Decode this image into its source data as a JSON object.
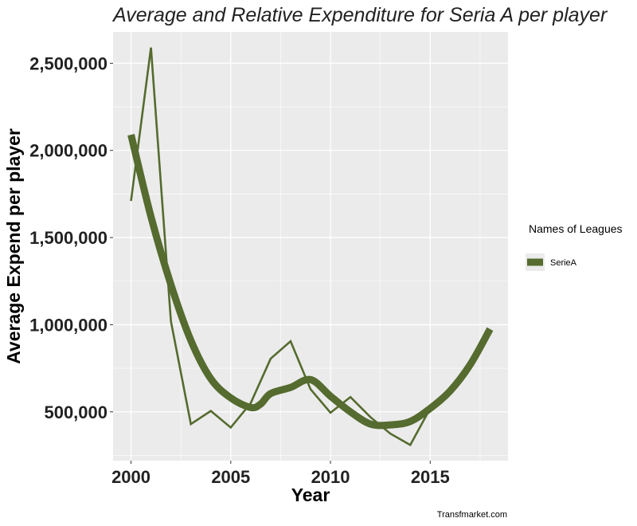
{
  "chart_data": {
    "type": "line",
    "title": "Average and Relative  Expenditure for Seria A  per player",
    "xlabel": "Year",
    "ylabel": "Average Expend  per player",
    "caption": "Transfmarket.com",
    "xlim": [
      1999.1,
      2018.9
    ],
    "ylim": [
      220000,
      2680000
    ],
    "xticks": [
      2000,
      2005,
      2010,
      2015
    ],
    "yticks": [
      500000,
      1000000,
      1500000,
      2000000,
      2500000
    ],
    "xtick_labels": [
      "2000",
      "2005",
      "2010",
      "2015"
    ],
    "ytick_labels": [
      "500,000",
      "1,000,000",
      "1,500,000",
      "2,000,000",
      "2,500,000"
    ],
    "grid": true,
    "panel_background": "#ebebeb",
    "legend": {
      "title": "Names of Leagues",
      "position": "right",
      "entries": [
        "SerieA"
      ]
    },
    "series": [
      {
        "name": "SerieA",
        "kind": "raw",
        "color": "#556b2f",
        "x": [
          2000,
          2001,
          2002,
          2003,
          2004,
          2005,
          2006,
          2007,
          2008,
          2009,
          2010,
          2011,
          2012,
          2013,
          2014,
          2015
        ],
        "y": [
          1710000,
          2590000,
          1020000,
          430000,
          505000,
          410000,
          550000,
          805000,
          905000,
          630000,
          495000,
          585000,
          470000,
          375000,
          310000,
          520000
        ]
      },
      {
        "name": "SerieA",
        "kind": "smoothed",
        "color": "#556b2f",
        "x": [
          2000,
          2001,
          2002,
          2003,
          2004,
          2005,
          2006,
          2006.5,
          2007,
          2008,
          2009,
          2010,
          2011,
          2012,
          2013,
          2014,
          2015,
          2016,
          2017,
          2018
        ],
        "y": [
          2090000,
          1620000,
          1230000,
          910000,
          690000,
          580000,
          525000,
          545000,
          605000,
          640000,
          685000,
          590000,
          500000,
          430000,
          425000,
          445000,
          520000,
          620000,
          770000,
          975000
        ]
      }
    ]
  }
}
